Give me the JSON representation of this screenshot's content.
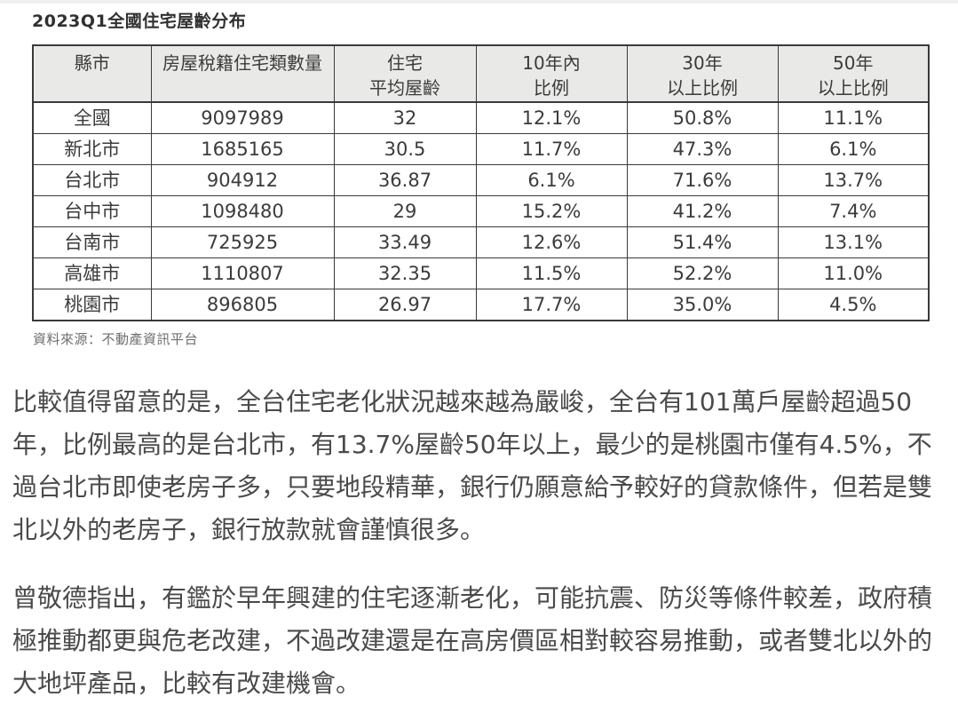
{
  "figure": {
    "title": "2023Q1全國住宅屋齡分布",
    "source": "資料來源：不動產資訊平台",
    "table": {
      "headers": [
        "縣市",
        "房屋稅籍住宅類數量",
        "住宅\n平均屋齡",
        "10年內\n比例",
        "30年\n以上比例",
        "50年\n以上比例"
      ],
      "rows": [
        [
          "全國",
          "9097989",
          "32",
          "12.1%",
          "50.8%",
          "11.1%"
        ],
        [
          "新北市",
          "1685165",
          "30.5",
          "11.7%",
          "47.3%",
          "6.1%"
        ],
        [
          "台北市",
          "904912",
          "36.87",
          "6.1%",
          "71.6%",
          "13.7%"
        ],
        [
          "台中市",
          "1098480",
          "29",
          "15.2%",
          "41.2%",
          "7.4%"
        ],
        [
          "台南市",
          "725925",
          "33.49",
          "12.6%",
          "51.4%",
          "13.1%"
        ],
        [
          "高雄市",
          "1110807",
          "32.35",
          "11.5%",
          "52.2%",
          "11.0%"
        ],
        [
          "桃園市",
          "896805",
          "26.97",
          "17.7%",
          "35.0%",
          "4.5%"
        ]
      ]
    }
  },
  "article": {
    "paragraphs": [
      "比較值得留意的是，全台住宅老化狀況越來越為嚴峻，全台有101萬戶屋齡超過50年，比例最高的是台北市，有13.7%屋齡50年以上，最少的是桃園市僅有4.5%，不過台北市即使老房子多，只要地段精華，銀行仍願意給予較好的貸款條件，但若是雙北以外的老房子，銀行放款就會謹慎很多。",
      "曾敬德指出，有鑑於早年興建的住宅逐漸老化，可能抗震、防災等條件較差，政府積極推動都更與危老改建，不過改建還是在高房價區相對較容易推動，或者雙北以外的大地坪產品，比較有改建機會。"
    ]
  },
  "colors": {
    "header_bg": "#e9e9e8",
    "table_border": "#3a3a3a",
    "body_text": "#4a4a4a",
    "source_text": "#6e6e6e"
  }
}
